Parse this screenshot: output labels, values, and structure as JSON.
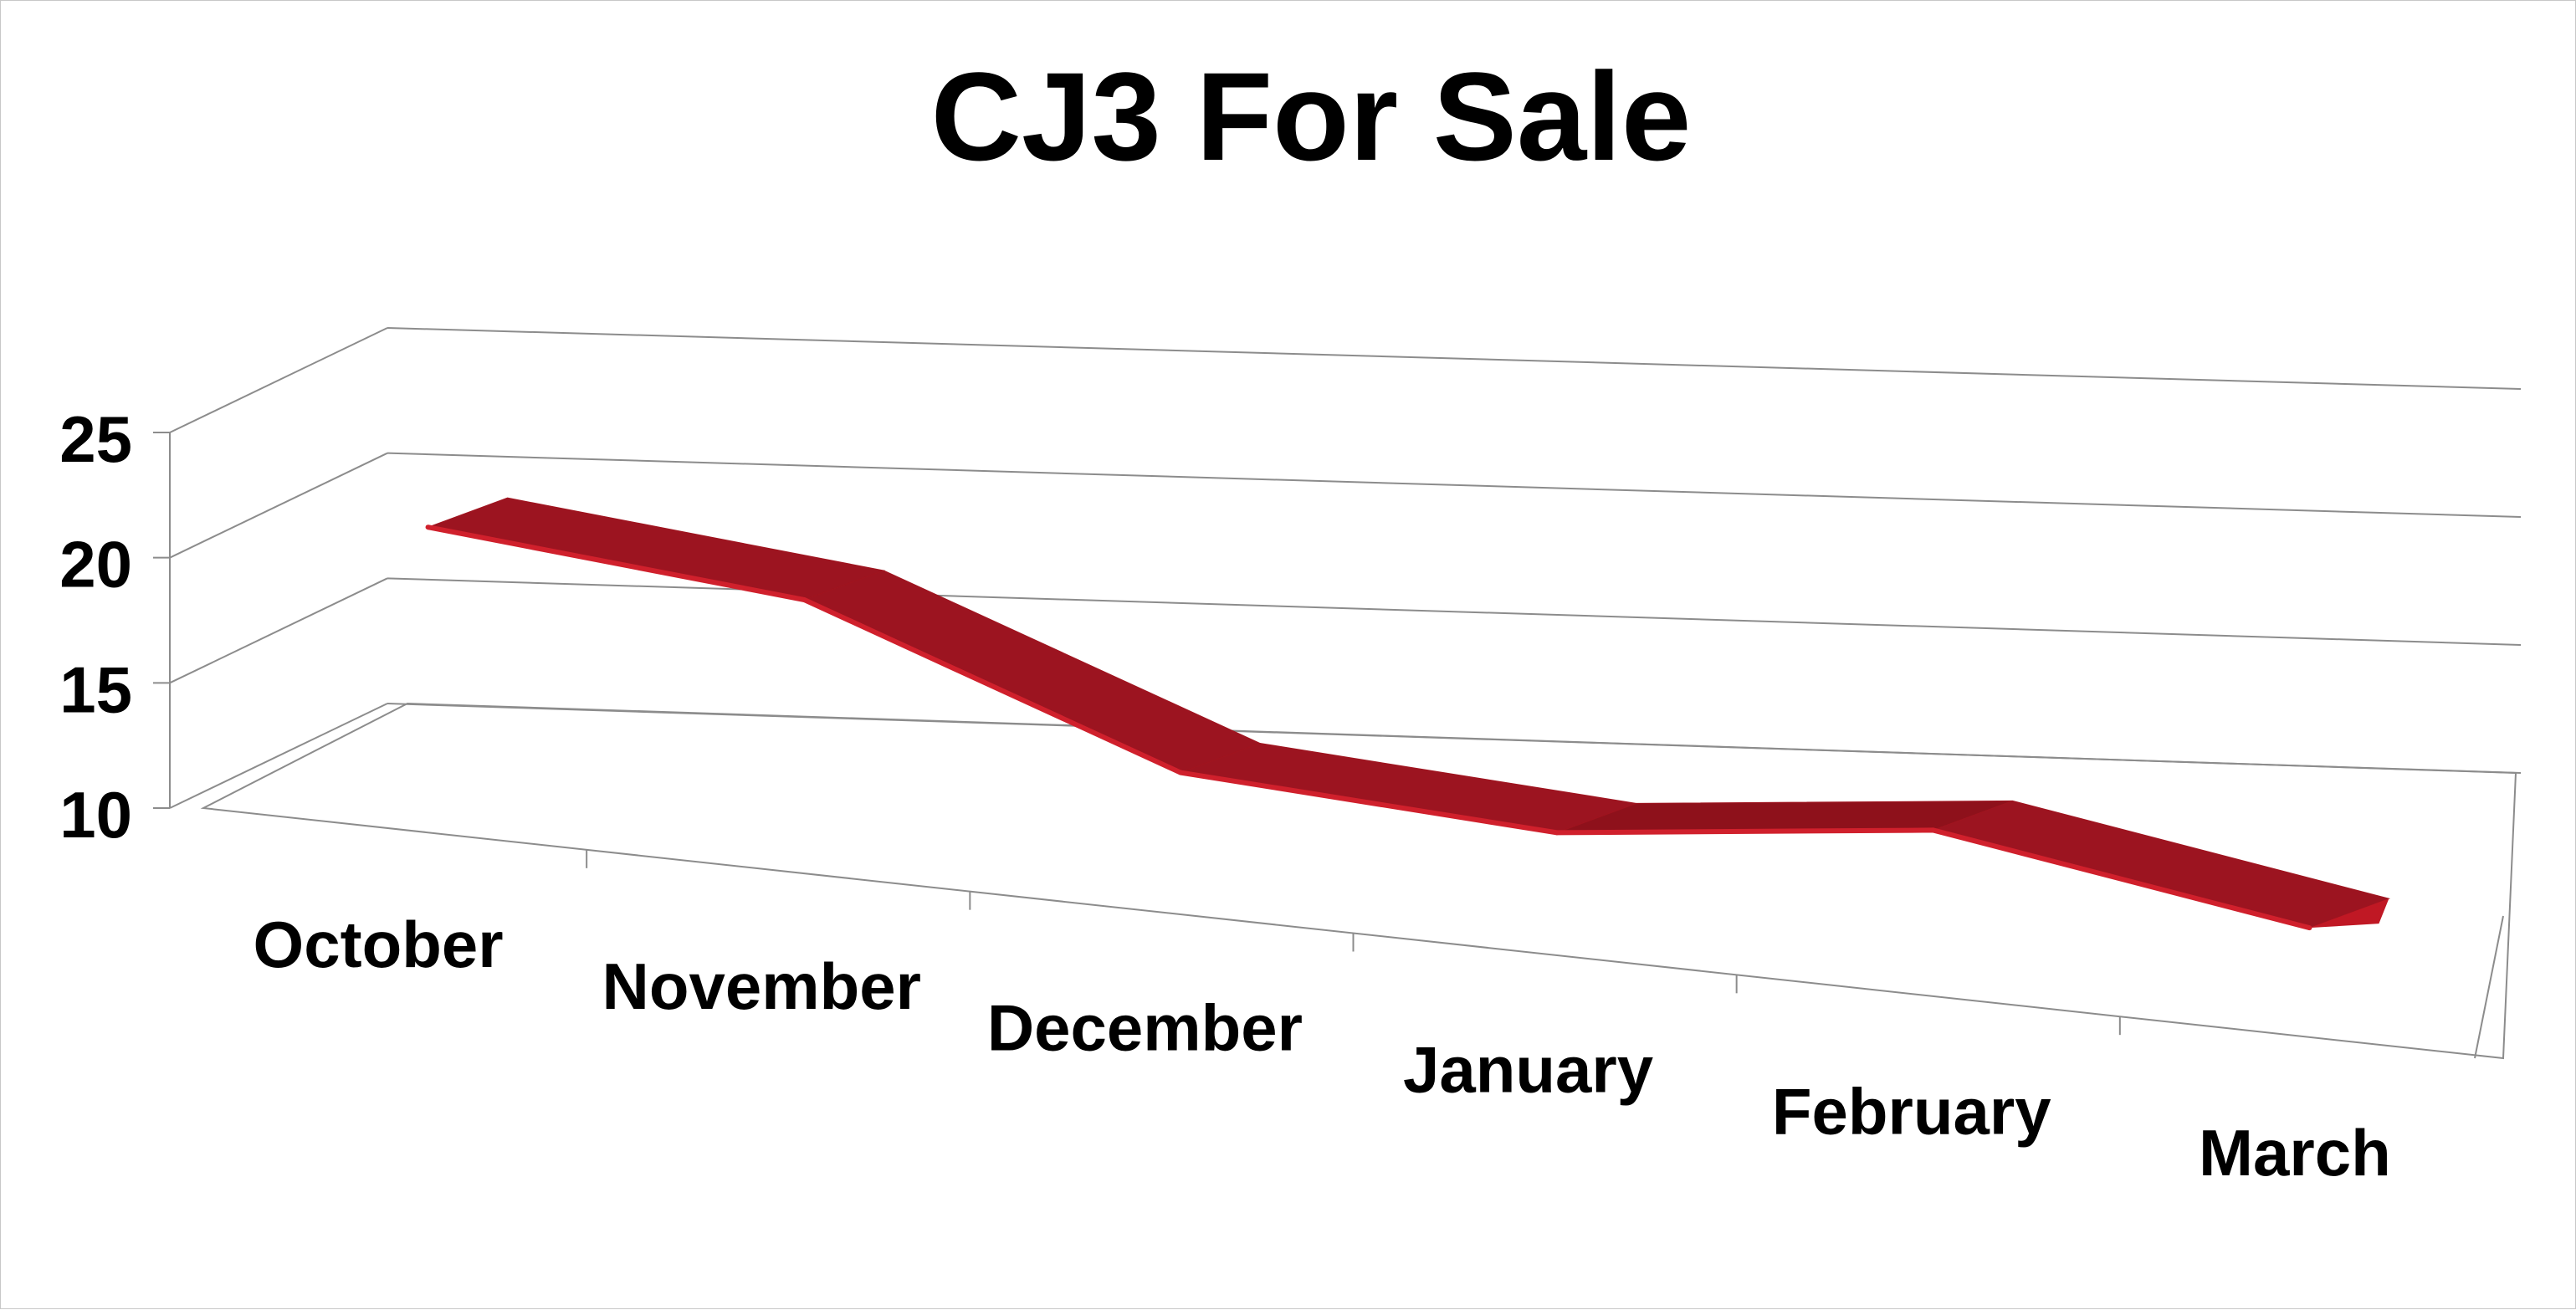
{
  "chart_data": {
    "type": "line",
    "style": "3d-ribbon",
    "title": "CJ3 For Sale",
    "categories": [
      "October",
      "November",
      "December",
      "January",
      "February",
      "March"
    ],
    "series": [
      {
        "values": [
          21,
          19.5,
          14,
          13,
          14.5,
          12
        ]
      }
    ],
    "ylim": [
      10,
      25
    ],
    "yticks": [
      "10",
      "15",
      "20",
      "25"
    ],
    "grid": true,
    "legend": "none",
    "colors": {
      "ribbon_top": "#a0141f",
      "ribbon_edge": "#d0202c",
      "grid": "#8c8c8c",
      "text": "#000000"
    }
  }
}
